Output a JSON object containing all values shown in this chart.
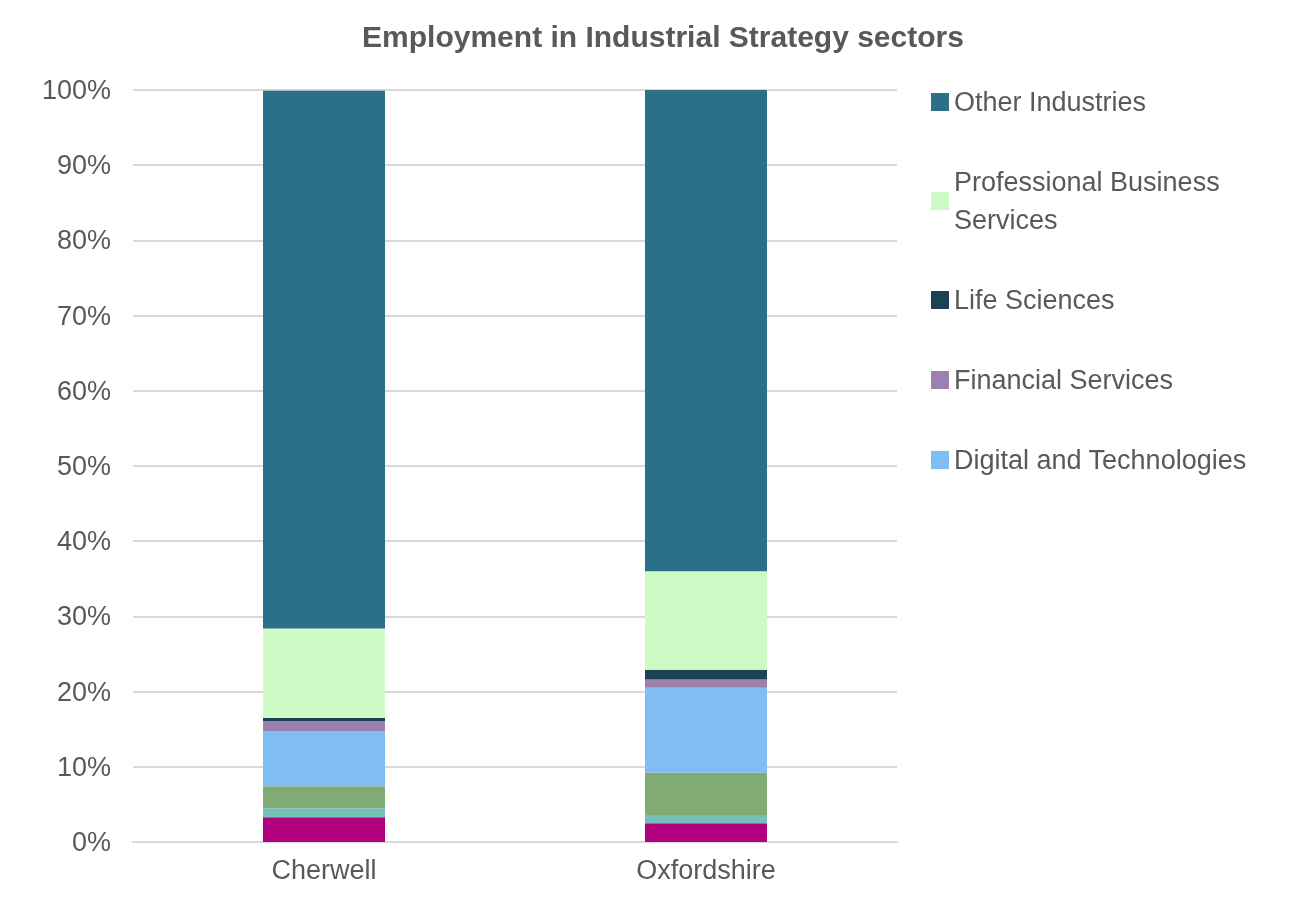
{
  "chart_data": {
    "type": "bar",
    "stacked": true,
    "title": "Employment in Industrial Strategy sectors",
    "categories": [
      "Cherwell",
      "Oxfordshire"
    ],
    "series": [
      {
        "color": "#b0007c",
        "values": [
          3.3,
          2.5
        ]
      },
      {
        "color": "#74bfb8",
        "values": [
          1.2,
          1.1
        ]
      },
      {
        "color": "#80ab74",
        "values": [
          2.9,
          5.6
        ]
      },
      {
        "name": "Digital and Technologies",
        "color": "#7fbdf2",
        "values": [
          7.3,
          11.3
        ]
      },
      {
        "name": "Financial Services",
        "color": "#9d80ad",
        "values": [
          1.4,
          1.1
        ]
      },
      {
        "name": "Life Sciences",
        "color": "#1b4353",
        "values": [
          0.4,
          1.3
        ]
      },
      {
        "name": "Professional Business Services",
        "color": "#cefac5",
        "values": [
          11.9,
          13.1
        ]
      },
      {
        "name": "Other Industries",
        "color": "#2c6f89",
        "values": [
          71.5,
          64.0
        ]
      }
    ],
    "ylim": [
      0,
      100
    ],
    "yticks": [
      {
        "value": 0,
        "label": "0%"
      },
      {
        "value": 10,
        "label": "10%"
      },
      {
        "value": 20,
        "label": "20%"
      },
      {
        "value": 30,
        "label": "30%"
      },
      {
        "value": 40,
        "label": "40%"
      },
      {
        "value": 50,
        "label": "50%"
      },
      {
        "value": 60,
        "label": "60%"
      },
      {
        "value": 70,
        "label": "70%"
      },
      {
        "value": 80,
        "label": "80%"
      },
      {
        "value": 90,
        "label": "90%"
      },
      {
        "value": 100,
        "label": "100%"
      }
    ],
    "grid": "y",
    "legend": "right"
  }
}
